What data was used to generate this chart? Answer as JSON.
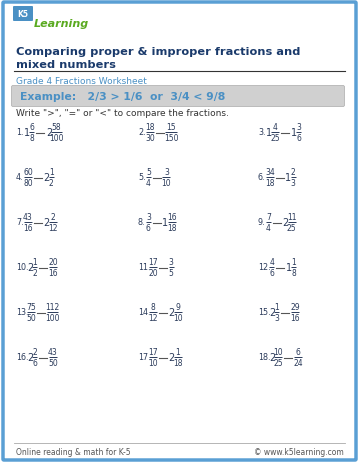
{
  "title_line1": "Comparing proper & improper fractions and",
  "title_line2": "mixed numbers",
  "subtitle": "Grade 4 Fractions Worksheet",
  "example_text": "Example:   2/3 > 1/6  or  3/4 < 9/8",
  "instruction": "Write \">\", \"=\" or \"<\" to compare the fractions.",
  "footer_left": "Online reading & math for K-5",
  "footer_right": "© www.k5learning.com",
  "border_color": "#5a9fd4",
  "title_color": "#1a3a6b",
  "subtitle_color": "#4a90c4",
  "example_bg": "#d0d0d0",
  "example_color": "#4a90c4",
  "body_color": "#2a3a5a",
  "problems": [
    {
      "num": 1,
      "a_whole": 1,
      "a_num": 6,
      "a_den": 8,
      "b_whole": 2,
      "b_num": 58,
      "b_den": 100
    },
    {
      "num": 2,
      "a_whole": 0,
      "a_num": 18,
      "a_den": 30,
      "b_whole": 0,
      "b_num": 15,
      "b_den": 150
    },
    {
      "num": 3,
      "a_whole": 1,
      "a_num": 4,
      "a_den": 25,
      "b_whole": 1,
      "b_num": 3,
      "b_den": 6
    },
    {
      "num": 4,
      "a_whole": 0,
      "a_num": 60,
      "a_den": 80,
      "b_whole": 2,
      "b_num": 1,
      "b_den": 2
    },
    {
      "num": 5,
      "a_whole": 0,
      "a_num": 5,
      "a_den": 4,
      "b_whole": 0,
      "b_num": 3,
      "b_den": 10
    },
    {
      "num": 6,
      "a_whole": 0,
      "a_num": 34,
      "a_den": 18,
      "b_whole": 1,
      "b_num": 2,
      "b_den": 3
    },
    {
      "num": 7,
      "a_whole": 0,
      "a_num": 43,
      "a_den": 16,
      "b_whole": 2,
      "b_num": 2,
      "b_den": 12
    },
    {
      "num": 8,
      "a_whole": 0,
      "a_num": 3,
      "a_den": 6,
      "b_whole": 1,
      "b_num": 16,
      "b_den": 18
    },
    {
      "num": 9,
      "a_whole": 0,
      "a_num": 7,
      "a_den": 4,
      "b_whole": 2,
      "b_num": 11,
      "b_den": 25
    },
    {
      "num": 10,
      "a_whole": 2,
      "a_num": 1,
      "a_den": 2,
      "b_whole": 0,
      "b_num": 20,
      "b_den": 16
    },
    {
      "num": 11,
      "a_whole": 0,
      "a_num": 17,
      "a_den": 20,
      "b_whole": 0,
      "b_num": 3,
      "b_den": 5
    },
    {
      "num": 12,
      "a_whole": 0,
      "a_num": 4,
      "a_den": 6,
      "b_whole": 1,
      "b_num": 1,
      "b_den": 8
    },
    {
      "num": 13,
      "a_whole": 0,
      "a_num": 75,
      "a_den": 50,
      "b_whole": 0,
      "b_num": 112,
      "b_den": 100
    },
    {
      "num": 14,
      "a_whole": 0,
      "a_num": 8,
      "a_den": 12,
      "b_whole": 2,
      "b_num": 9,
      "b_den": 10
    },
    {
      "num": 15,
      "a_whole": 2,
      "a_num": 1,
      "a_den": 3,
      "b_whole": 0,
      "b_num": 29,
      "b_den": 16
    },
    {
      "num": 16,
      "a_whole": 2,
      "a_num": 2,
      "a_den": 6,
      "b_whole": 0,
      "b_num": 43,
      "b_den": 50
    },
    {
      "num": 17,
      "a_whole": 0,
      "a_num": 17,
      "a_den": 10,
      "b_whole": 2,
      "b_num": 1,
      "b_den": 18
    },
    {
      "num": 18,
      "a_whole": 2,
      "a_num": 10,
      "a_den": 25,
      "b_whole": 0,
      "b_num": 6,
      "b_den": 24
    }
  ]
}
